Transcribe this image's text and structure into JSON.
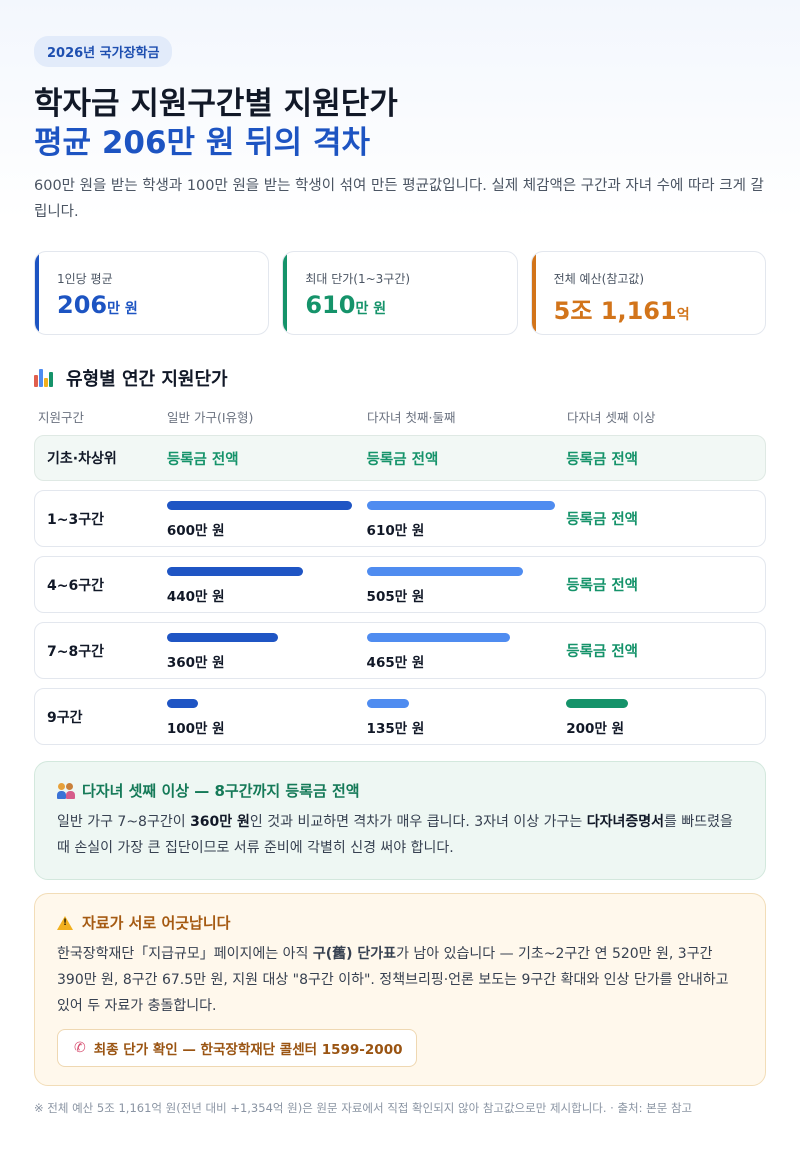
{
  "header": {
    "tag": "2026년 국가장학금",
    "title_line1": "학자금 지원구간별 지원단가",
    "title_line2": "평균 206만 원 뒤의 격차",
    "lead": "600만 원을 받는 학생과 100만 원을 받는 학생이 섞여 만든 평균값입니다. 실제 체감액은 구간과 자녀 수에 따라 크게 갈립니다."
  },
  "stats": [
    {
      "label": "1인당 평균",
      "value": "206",
      "unit": "만 원",
      "color": "#1d54c2"
    },
    {
      "label": "최대 단가(1~3구간)",
      "value": "610",
      "unit": "만 원",
      "color": "#15936a"
    },
    {
      "label": "전체 예산(참고값)",
      "value": "5조 1,161",
      "unit": "억",
      "color": "#d2741a"
    }
  ],
  "section": {
    "icon": "bar-chart-icon",
    "title": "유형별 연간 지원단가"
  },
  "table": {
    "headers": [
      "지원구간",
      "일반 가구(Ⅰ유형)",
      "다자녀 첫째·둘째",
      "다자녀 셋째 이상"
    ],
    "basic_row": {
      "label": "기초·차상위",
      "cells": [
        "등록금 전액",
        "등록금 전액",
        "등록금 전액"
      ]
    },
    "max_value": 610
  },
  "chart_data": {
    "type": "bar",
    "categories": [
      "1~3구간",
      "4~6구간",
      "7~8구간",
      "9구간"
    ],
    "series": [
      {
        "name": "일반 가구(Ⅰ유형)",
        "values": [
          600,
          440,
          360,
          100
        ],
        "labels": [
          "600만 원",
          "440만 원",
          "360만 원",
          "100만 원"
        ],
        "color": "#1f55c4"
      },
      {
        "name": "다자녀 첫째·둘째",
        "values": [
          610,
          505,
          465,
          135
        ],
        "labels": [
          "610만 원",
          "505만 원",
          "465만 원",
          "135만 원"
        ],
        "color": "#4f8cf0"
      },
      {
        "name": "다자녀 셋째 이상",
        "values": [
          null,
          null,
          null,
          200
        ],
        "labels": [
          "등록금 전액",
          "등록금 전액",
          "등록금 전액",
          "200만 원"
        ],
        "color": "#15936a"
      }
    ]
  },
  "callout_green": {
    "icon": "family-icon",
    "title": "다자녀 셋째 이상 — 8구간까지 등록금 전액",
    "body_pre": "일반 가구 7~8구간이 ",
    "body_bold1": "360만 원",
    "body_mid": "인 것과 비교하면 격차가 매우 큽니다. 3자녀 이상 가구는 ",
    "body_bold2": "다자녀증명서",
    "body_post": "를 빠뜨렸을 때 손실이 가장 큰 집단이므로 서류 준비에 각별히 신경 써야 합니다."
  },
  "callout_orange": {
    "icon": "warning-icon",
    "title": "자료가 서로 어긋납니다",
    "body_pre": "한국장학재단「지급규모」페이지에는 아직 ",
    "body_bold": "구(舊) 단가표",
    "body_post": "가 남아 있습니다 — 기초~2구간 연 520만 원, 3구간 390만 원, 8구간 67.5만 원, 지원 대상 \"8구간 이하\". 정책브리핑·언론 보도는 9구간 확대와 인상 단가를 안내하고 있어 두 자료가 충돌합니다.",
    "button_label": "최종 단가 확인 — 한국장학재단 콜센터 1599-2000"
  },
  "footer": "※ 전체 예산 5조 1,161억 원(전년 대비 +1,354억 원)은 원문 자료에서 직접 확인되지 않아 참고값으로만 제시합니다. · 출처: 본문 참고"
}
